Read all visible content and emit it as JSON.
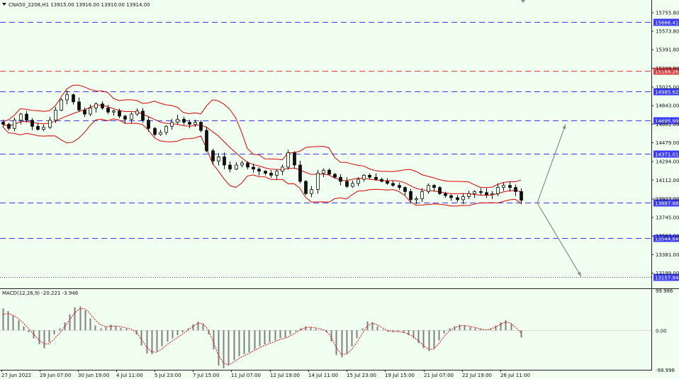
{
  "header": {
    "symbol_line": "CNA50_2208,H1  13915.00 13916.00 13910.00 13914.00",
    "macd_line": "MACD(12,26,9) -20.221 -3.946"
  },
  "colors": {
    "background": "#f0fff0",
    "bollinger": "#e00000",
    "candle": "#111111",
    "blue_level": "#3b3bff",
    "red_level": "#e04040",
    "arrow": "#8a8a8a",
    "histogram": "#808080",
    "signal": "#e00000"
  },
  "chart_data": [
    {
      "type": "candlestick",
      "title": "CNA50_2208,H1",
      "ohlc_current": {
        "open": 13915.0,
        "high": 13916.0,
        "low": 13910.0,
        "close": 13914.0
      },
      "y_range": [
        13050,
        15880
      ],
      "y_ticks": [
        15755.8,
        15573.8,
        15391.8,
        15209.8,
        15025.0,
        14843.0,
        14661.0,
        14479.0,
        14294.0,
        14112.0,
        13927.0,
        13745.0,
        13563.0,
        13381.0,
        13199.0
      ],
      "x_tick_labels": [
        "27 Jun 2022",
        "29 Jun 07:00",
        "30 Jun 19:00",
        "4 Jul 11:00",
        "5 Jul 23:00",
        "7 Jul 15:00",
        "11 Jul 07:00",
        "12 Jul 19:00",
        "14 Jul 11:00",
        "15 Jul 23:00",
        "19 Jul 15:00",
        "21 Jul 07:00",
        "22 Jul 19:00",
        "26 Jul 11:00"
      ],
      "price_levels": [
        {
          "value": 15666.41,
          "label": "15666.41",
          "style": "blue-dash"
        },
        {
          "value": 15184.26,
          "label": "15184.26",
          "style": "red-dash"
        },
        {
          "value": 14985.62,
          "label": "14985.62",
          "style": "blue-dash"
        },
        {
          "value": 14695.99,
          "label": "14695.99",
          "style": "blue-dash"
        },
        {
          "value": 14371.01,
          "label": "14371.01",
          "style": "blue-dash"
        },
        {
          "value": 13914.0,
          "label": "13914.00",
          "style": "current"
        },
        {
          "value": 13887.88,
          "label": "13887.88",
          "style": "blue-dash"
        },
        {
          "value": 13544.84,
          "label": "13544.84",
          "style": "blue-dash"
        },
        {
          "value": 13157.84,
          "label": "13157.84",
          "style": "blue-dot"
        }
      ],
      "close_path": [
        14660,
        14620,
        14700,
        14760,
        14700,
        14640,
        14610,
        14630,
        14700,
        14800,
        14900,
        14950,
        14880,
        14800,
        14760,
        14820,
        14860,
        14820,
        14780,
        14790,
        14740,
        14710,
        14760,
        14790,
        14700,
        14620,
        14560,
        14580,
        14640,
        14680,
        14710,
        14680,
        14660,
        14680,
        14600,
        14400,
        14300,
        14340,
        14260,
        14220,
        14260,
        14280,
        14240,
        14220,
        14200,
        14180,
        14160,
        14200,
        14240,
        14380,
        14260,
        14100,
        13980,
        14020,
        14180,
        14210,
        14170,
        14140,
        14100,
        14050,
        14080,
        14120,
        14160,
        14140,
        14120,
        14100,
        14080,
        14060,
        14040,
        14000,
        13920,
        13930,
        14000,
        14060,
        14040,
        13980,
        13960,
        13940,
        13920,
        13950,
        13980,
        14000,
        13990,
        13970,
        13980,
        14040,
        14060,
        14040,
        14000,
        13914
      ],
      "macd": {
        "range": [
          -98.996,
          99.986
        ],
        "y_ticks": [
          99.986,
          0.0,
          -98.996
        ],
        "histogram": [
          55,
          48,
          38,
          25,
          10,
          -5,
          -20,
          -35,
          -45,
          -30,
          -10,
          5,
          20,
          40,
          58,
          60,
          50,
          30,
          12,
          5,
          8,
          14,
          10,
          6,
          4,
          0,
          -10,
          -38,
          -58,
          -60,
          -52,
          -40,
          -28,
          -20,
          -12,
          -5,
          5,
          15,
          22,
          15,
          -10,
          -48,
          -88,
          -95,
          -88,
          -75,
          -65,
          -60,
          -55,
          -48,
          -40,
          -35,
          -30,
          -25,
          -20,
          -18,
          -10,
          -3,
          5,
          10,
          8,
          4,
          0,
          -5,
          -28,
          -62,
          -68,
          -58,
          -40,
          -20,
          5,
          22,
          20,
          10,
          2,
          -4,
          -4,
          -3,
          -6,
          -12,
          -20,
          -32,
          -45,
          -52,
          -45,
          -25,
          -8,
          5,
          10,
          14,
          12,
          8,
          5,
          3,
          0,
          5,
          12,
          20,
          25,
          16,
          0,
          -18
        ],
        "signal": [
          40,
          42,
          38,
          30,
          18,
          5,
          -10,
          -24,
          -34,
          -34,
          -22,
          -8,
          8,
          26,
          44,
          54,
          54,
          42,
          26,
          14,
          9,
          10,
          11,
          9,
          6,
          3,
          -4,
          -22,
          -42,
          -54,
          -55,
          -47,
          -36,
          -27,
          -18,
          -10,
          0,
          9,
          17,
          17,
          2,
          -28,
          -62,
          -82,
          -87,
          -80,
          -71,
          -64,
          -58,
          -51,
          -44,
          -38,
          -33,
          -28,
          -23,
          -20,
          -14,
          -7,
          1,
          7,
          8,
          6,
          3,
          -1,
          -16,
          -44,
          -60,
          -60,
          -48,
          -30,
          -10,
          10,
          18,
          14,
          6,
          0,
          -3,
          -3,
          -5,
          -9,
          -16,
          -26,
          -38,
          -48,
          -47,
          -33,
          -16,
          -2,
          6,
          11,
          12,
          10,
          7,
          4,
          1,
          3,
          8,
          15,
          21,
          18,
          7,
          -6
        ]
      }
    }
  ]
}
